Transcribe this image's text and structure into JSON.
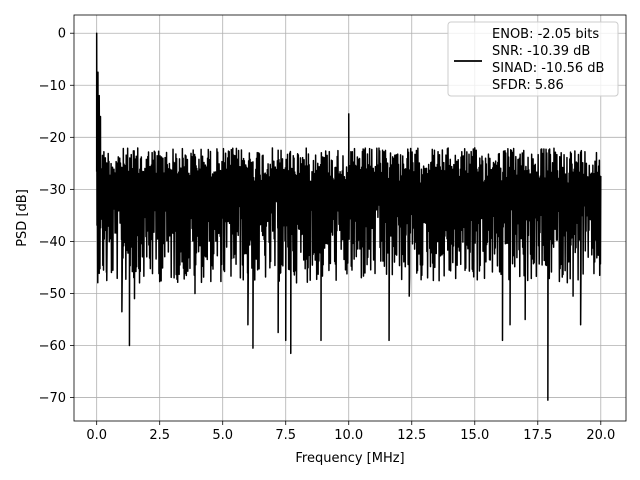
{
  "chart_data": {
    "type": "line",
    "xlabel": "Frequency [MHz]",
    "ylabel": "PSD [dB]",
    "xlim": [
      -0.9,
      21.0
    ],
    "ylim": [
      -74.5,
      3.5
    ],
    "grid": true,
    "legend_position": "top-right",
    "x_ticks": [
      0.0,
      2.5,
      5.0,
      7.5,
      10.0,
      12.5,
      15.0,
      17.5,
      20.0
    ],
    "x_tick_labels": [
      "0.0",
      "2.5",
      "5.0",
      "7.5",
      "10.0",
      "12.5",
      "15.0",
      "17.5",
      "20.0"
    ],
    "y_ticks": [
      0,
      -10,
      -20,
      -30,
      -40,
      -50,
      -60,
      -70
    ],
    "y_tick_labels": [
      "0",
      "−10",
      "−20",
      "−30",
      "−40",
      "−50",
      "−60",
      "−70"
    ],
    "series": [
      {
        "color": "#000000",
        "legend_lines": [
          "ENOB: -2.05 bits",
          "SNR: -10.39 dB",
          "SINAD: -10.56 dB",
          "SFDR: 5.86"
        ],
        "x_range": [
          0.0,
          20.0
        ],
        "baseline_db": -29,
        "upper_envelope_db": -22,
        "lower_envelope_db": -42,
        "peaks": [
          {
            "x": 0.0,
            "y": 0.0
          },
          {
            "x": 0.05,
            "y": -7.5
          },
          {
            "x": 0.1,
            "y": -12.0
          },
          {
            "x": 0.15,
            "y": -16.0
          },
          {
            "x": 10.0,
            "y": -15.5
          }
        ],
        "dips": [
          {
            "x": 0.4,
            "y": -47.5
          },
          {
            "x": 1.0,
            "y": -53.5
          },
          {
            "x": 1.3,
            "y": -60.0
          },
          {
            "x": 1.5,
            "y": -51.0
          },
          {
            "x": 3.9,
            "y": -50.0
          },
          {
            "x": 6.0,
            "y": -56.0
          },
          {
            "x": 6.2,
            "y": -60.5
          },
          {
            "x": 7.2,
            "y": -57.5
          },
          {
            "x": 7.5,
            "y": -59.0
          },
          {
            "x": 7.7,
            "y": -61.5
          },
          {
            "x": 8.9,
            "y": -59.0
          },
          {
            "x": 11.6,
            "y": -59.0
          },
          {
            "x": 12.4,
            "y": -50.5
          },
          {
            "x": 16.1,
            "y": -59.0
          },
          {
            "x": 16.4,
            "y": -56.0
          },
          {
            "x": 17.0,
            "y": -55.0
          },
          {
            "x": 17.9,
            "y": -70.5
          },
          {
            "x": 18.9,
            "y": -50.5
          },
          {
            "x": 19.2,
            "y": -56.0
          }
        ]
      }
    ]
  }
}
